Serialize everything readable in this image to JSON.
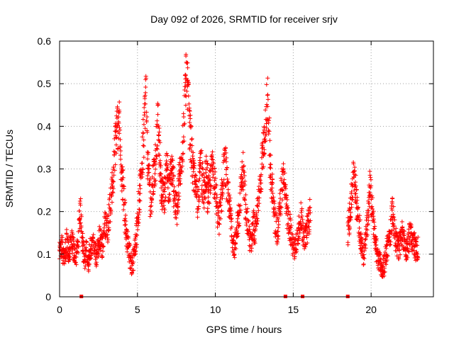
{
  "chart_data": {
    "type": "scatter",
    "title": "Day 092 of 2026, SRMTID for receiver srjv",
    "xlabel": "GPS time / hours",
    "ylabel": "SRMTID / TECUs",
    "xlim": [
      0,
      24
    ],
    "ylim": [
      0,
      0.6
    ],
    "xticks": [
      0,
      5,
      10,
      15,
      20
    ],
    "yticks": [
      0,
      0.1,
      0.2,
      0.3,
      0.4,
      0.5,
      0.6
    ],
    "grid": true,
    "marker": "plus",
    "color": "#ff0000",
    "segments": [
      {
        "start": 0.0,
        "end": 4.2,
        "values": [
          0.1,
          0.11,
          0.12,
          0.09,
          0.1,
          0.13,
          0.11,
          0.1,
          0.14,
          0.12,
          0.11,
          0.09,
          0.1,
          0.12,
          0.18,
          0.2,
          0.15,
          0.1,
          0.09,
          0.11,
          0.08,
          0.1,
          0.12,
          0.11,
          0.13,
          0.1,
          0.09,
          0.11,
          0.14,
          0.13,
          0.12,
          0.15,
          0.17,
          0.18,
          0.16,
          0.2,
          0.22,
          0.26,
          0.3,
          0.35,
          0.38,
          0.4,
          0.42,
          0.31,
          0.28,
          0.24,
          0.2
        ]
      },
      {
        "start": 4.2,
        "end": 7.0,
        "values": [
          0.17,
          0.14,
          0.12,
          0.1,
          0.08,
          0.07,
          0.1,
          0.13,
          0.16,
          0.21,
          0.25,
          0.3,
          0.35,
          0.42,
          0.48,
          0.33,
          0.27,
          0.22,
          0.25,
          0.28,
          0.3,
          0.36,
          0.41,
          0.33,
          0.26,
          0.24,
          0.22,
          0.28,
          0.32,
          0.27
        ]
      },
      {
        "start": 7.0,
        "end": 9.5,
        "values": [
          0.24,
          0.28,
          0.3,
          0.26,
          0.22,
          0.2,
          0.25,
          0.29,
          0.33,
          0.38,
          0.45,
          0.55,
          0.48,
          0.4,
          0.35,
          0.3,
          0.27,
          0.25,
          0.22,
          0.28,
          0.31,
          0.26,
          0.24,
          0.29,
          0.27
        ]
      },
      {
        "start": 9.5,
        "end": 12.5,
        "values": [
          0.22,
          0.25,
          0.28,
          0.3,
          0.27,
          0.24,
          0.2,
          0.18,
          0.21,
          0.25,
          0.29,
          0.31,
          0.27,
          0.23,
          0.2,
          0.16,
          0.13,
          0.12,
          0.15,
          0.18,
          0.22,
          0.26,
          0.3,
          0.25,
          0.2,
          0.17,
          0.14,
          0.12,
          0.16,
          0.19
        ]
      },
      {
        "start": 12.5,
        "end": 14.7,
        "values": [
          0.14,
          0.17,
          0.2,
          0.24,
          0.28,
          0.33,
          0.36,
          0.42,
          0.46,
          0.38,
          0.3,
          0.25,
          0.2,
          0.17,
          0.15,
          0.18,
          0.22,
          0.26,
          0.3,
          0.24,
          0.2,
          0.17
        ]
      },
      {
        "start": 14.7,
        "end": 16.1,
        "values": [
          0.18,
          0.16,
          0.14,
          0.12,
          0.11,
          0.13,
          0.15,
          0.17,
          0.19,
          0.16,
          0.14,
          0.15,
          0.16,
          0.18,
          0.2
        ]
      },
      {
        "start": 18.5,
        "end": 23.0,
        "values": [
          0.15,
          0.18,
          0.22,
          0.26,
          0.28,
          0.24,
          0.2,
          0.17,
          0.14,
          0.12,
          0.1,
          0.13,
          0.16,
          0.22,
          0.26,
          0.22,
          0.18,
          0.14,
          0.11,
          0.09,
          0.08,
          0.07,
          0.06,
          0.08,
          0.1,
          0.12,
          0.14,
          0.16,
          0.2,
          0.17,
          0.14,
          0.12,
          0.11,
          0.13,
          0.15,
          0.13,
          0.12,
          0.11,
          0.13,
          0.15,
          0.14,
          0.13,
          0.12,
          0.11,
          0.12
        ]
      }
    ],
    "zero_markers": [
      1.4,
      14.5,
      15.6,
      18.5
    ]
  }
}
